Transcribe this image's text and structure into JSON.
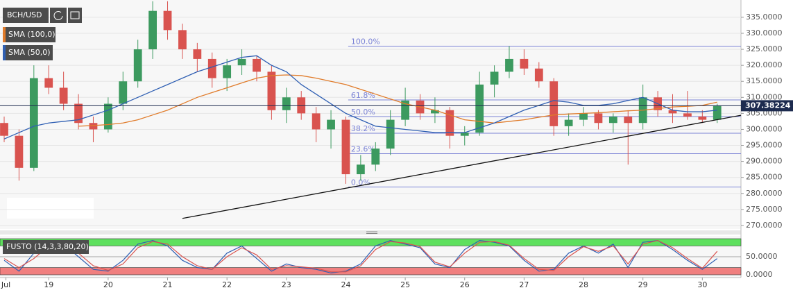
{
  "chart_data": [
    {
      "type": "candlestick",
      "name": "BCH/USD",
      "x": [
        18.25,
        18.5,
        18.75,
        19,
        19.25,
        19.5,
        19.75,
        20,
        20.25,
        20.5,
        20.75,
        21,
        21.25,
        21.5,
        21.75,
        22,
        22.25,
        22.5,
        22.75,
        23,
        23.25,
        23.5,
        23.75,
        24,
        24.25,
        24.5,
        24.75,
        25,
        25.25,
        25.5,
        25.75,
        26,
        26.25,
        26.5,
        26.75,
        27,
        27.25,
        27.5,
        27.75,
        28,
        28.25,
        28.5,
        28.75,
        29,
        29.25,
        29.5,
        29.75,
        30,
        30.25
      ],
      "open": [
        302,
        298,
        288,
        316,
        313,
        308,
        302,
        300,
        308,
        315,
        325,
        337,
        331,
        325,
        322,
        316,
        320,
        322,
        318,
        306,
        310,
        305,
        300,
        303,
        286,
        289,
        294,
        303,
        309,
        305,
        306,
        298,
        299,
        314,
        318,
        322,
        319,
        315,
        301,
        303,
        305,
        302,
        304,
        302,
        310,
        306,
        305,
        304,
        303
      ],
      "high": [
        304,
        300,
        320,
        320,
        318,
        311,
        304,
        310,
        318,
        328,
        340,
        340,
        333,
        327,
        324,
        322,
        325,
        323,
        320,
        313,
        312,
        307,
        306,
        304,
        292,
        296,
        306,
        313,
        311,
        310,
        307,
        301,
        318,
        320,
        326,
        325,
        321,
        316,
        305,
        307,
        306,
        305,
        306,
        314,
        312,
        311,
        312,
        306,
        308
      ],
      "low": [
        296,
        284,
        287,
        311,
        306,
        300,
        296,
        299,
        306,
        313,
        322,
        328,
        322,
        318,
        313,
        312,
        317,
        315,
        303,
        302,
        303,
        296,
        294,
        283,
        284,
        287,
        292,
        301,
        303,
        302,
        294,
        295,
        298,
        310,
        316,
        317,
        313,
        298,
        298,
        301,
        300,
        299,
        289,
        300,
        304,
        302,
        303,
        302,
        302
      ],
      "close": [
        298,
        288,
        316,
        313,
        308,
        302,
        300,
        308,
        315,
        325,
        337,
        331,
        325,
        322,
        316,
        320,
        322,
        318,
        306,
        310,
        305,
        300,
        303,
        286,
        289,
        294,
        303,
        309,
        305,
        306,
        298,
        299,
        314,
        318,
        322,
        319,
        315,
        301,
        303,
        305,
        302,
        304,
        302,
        310,
        306,
        305,
        304,
        303,
        307.38224
      ],
      "up_color": "#3c9a5f",
      "down_color": "#d9534f",
      "overlays": [
        {
          "name": "SMA (100,0)",
          "color": "#e07b2a",
          "values": [
            null,
            null,
            null,
            null,
            null,
            301,
            301.2,
            301.5,
            302,
            303,
            304.5,
            306,
            308,
            310,
            311.5,
            313,
            314.5,
            316,
            316.8,
            317,
            316.8,
            316,
            315,
            314,
            312.5,
            311,
            309.5,
            308,
            307,
            306,
            304.5,
            303,
            302.5,
            302,
            302.5,
            303,
            303.8,
            304.5,
            304.8,
            305,
            305.2,
            305.5,
            305.8,
            306,
            306.5,
            307,
            307.2,
            307.5,
            308.5
          ]
        },
        {
          "name": "SMA (50,0)",
          "color": "#2f5fb3",
          "values": [
            297,
            299,
            301,
            302,
            302.5,
            303,
            304.5,
            306,
            308,
            310,
            312,
            314,
            316,
            318,
            319.5,
            321,
            322.5,
            323,
            320,
            318,
            314,
            311,
            308,
            305,
            303,
            301,
            300.5,
            300,
            299.5,
            299,
            299,
            299,
            300.5,
            302,
            304,
            306,
            307.5,
            309,
            308.5,
            307.5,
            307.5,
            308,
            309,
            310,
            308,
            306,
            305.5,
            305.5,
            306
          ]
        }
      ],
      "fib": {
        "levels": [
          326,
          309.2,
          304,
          298.8,
          292.4,
          282
        ],
        "labels": [
          "100.0%",
          "61.8%",
          "50.0%",
          "38.2%",
          "23.6%",
          "0.0%"
        ],
        "start": 24.04,
        "color": "#7b83d6"
      },
      "trendline": {
        "x": [
          21.25,
          30.65
        ],
        "y": [
          272.2,
          304.4
        ]
      },
      "last_price": 307.38224,
      "xlim": [
        18.18,
        30.65
      ],
      "ylim": [
        268.9,
        340.4
      ],
      "yticks": [
        {
          "value": 270,
          "label": "270.0000"
        },
        {
          "value": 275,
          "label": "275.0000"
        },
        {
          "value": 280,
          "label": "280.0000"
        },
        {
          "value": 285,
          "label": "285.0000"
        },
        {
          "value": 290,
          "label": "290.0000"
        },
        {
          "value": 295,
          "label": "295.0000"
        },
        {
          "value": 300,
          "label": "300.0000"
        },
        {
          "value": 305,
          "label": "305.0000"
        },
        {
          "value": 310,
          "label": "310.0000"
        },
        {
          "value": 315,
          "label": "315.0000"
        },
        {
          "value": 320,
          "label": "320.0000"
        },
        {
          "value": 325,
          "label": "325.0000"
        },
        {
          "value": 330,
          "label": "330.0000"
        },
        {
          "value": 335,
          "label": "335.0000"
        }
      ]
    },
    {
      "type": "line",
      "name": "FUSTO (14,3,3,80,20)",
      "series": [
        {
          "color": "#2f5fb3",
          "values": [
            40,
            10,
            60,
            90,
            85,
            50,
            15,
            10,
            40,
            85,
            95,
            80,
            40,
            20,
            15,
            60,
            80,
            45,
            10,
            30,
            20,
            15,
            5,
            10,
            30,
            80,
            95,
            85,
            75,
            30,
            20,
            70,
            95,
            90,
            80,
            40,
            10,
            15,
            60,
            80,
            60,
            85,
            20,
            90,
            95,
            70,
            40,
            15,
            45
          ]
        },
        {
          "color": "#d9534f",
          "values": [
            45,
            20,
            45,
            80,
            88,
            60,
            25,
            12,
            30,
            75,
            92,
            85,
            50,
            25,
            15,
            50,
            75,
            55,
            15,
            25,
            22,
            18,
            8,
            8,
            25,
            70,
            92,
            88,
            78,
            35,
            22,
            60,
            90,
            92,
            82,
            45,
            15,
            12,
            50,
            78,
            65,
            80,
            30,
            85,
            95,
            75,
            45,
            18,
            65
          ]
        }
      ],
      "bands": [
        {
          "range": [
            80,
            100
          ],
          "color": "#5ee05e"
        },
        {
          "range": [
            0,
            20
          ],
          "color": "#f07f7f"
        }
      ],
      "ylim": [
        -7.7,
        107.7
      ],
      "yticks": [
        {
          "value": 0,
          "label": "0.0000"
        },
        {
          "value": 50,
          "label": "50.0000"
        }
      ],
      "xlim": [
        18.18,
        30.65
      ],
      "xticks": [
        {
          "value": 18.28,
          "label": "Jul"
        },
        19,
        20,
        21,
        22,
        23,
        24,
        25,
        26,
        27,
        28,
        29,
        30
      ]
    }
  ]
}
